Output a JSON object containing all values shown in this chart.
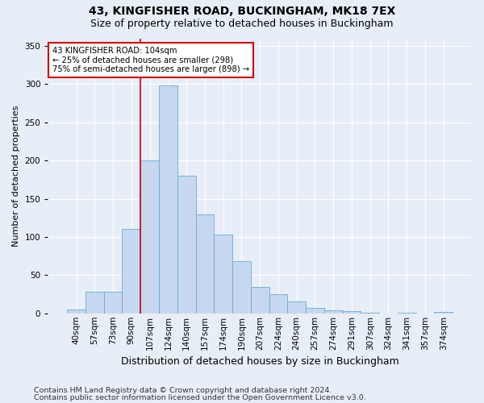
{
  "title1": "43, KINGFISHER ROAD, BUCKINGHAM, MK18 7EX",
  "title2": "Size of property relative to detached houses in Buckingham",
  "xlabel": "Distribution of detached houses by size in Buckingham",
  "ylabel": "Number of detached properties",
  "footnote1": "Contains HM Land Registry data © Crown copyright and database right 2024.",
  "footnote2": "Contains public sector information licensed under the Open Government Licence v3.0.",
  "bin_labels": [
    "40sqm",
    "57sqm",
    "73sqm",
    "90sqm",
    "107sqm",
    "124sqm",
    "140sqm",
    "157sqm",
    "174sqm",
    "190sqm",
    "207sqm",
    "224sqm",
    "240sqm",
    "257sqm",
    "274sqm",
    "291sqm",
    "307sqm",
    "324sqm",
    "341sqm",
    "357sqm",
    "374sqm"
  ],
  "bar_values": [
    5,
    28,
    28,
    110,
    200,
    298,
    180,
    130,
    103,
    68,
    35,
    25,
    16,
    7,
    4,
    3,
    1,
    0,
    1,
    0,
    2
  ],
  "bar_color": "#c5d8f0",
  "bar_edge_color": "#6aaad4",
  "vline_x_index": 4,
  "vline_color": "#cc0000",
  "annotation_text": "43 KINGFISHER ROAD: 104sqm\n← 25% of detached houses are smaller (298)\n75% of semi-detached houses are larger (898) →",
  "annotation_box_color": "#ffffff",
  "annotation_box_edge_color": "#cc0000",
  "ylim": [
    0,
    360
  ],
  "yticks": [
    0,
    50,
    100,
    150,
    200,
    250,
    300,
    350
  ],
  "bg_color": "#e8eef7",
  "plot_bg_color": "#e8eef7",
  "grid_color": "#ffffff",
  "title1_fontsize": 10,
  "title2_fontsize": 9,
  "xlabel_fontsize": 9,
  "ylabel_fontsize": 8,
  "tick_fontsize": 7.5,
  "footnote_fontsize": 6.8
}
